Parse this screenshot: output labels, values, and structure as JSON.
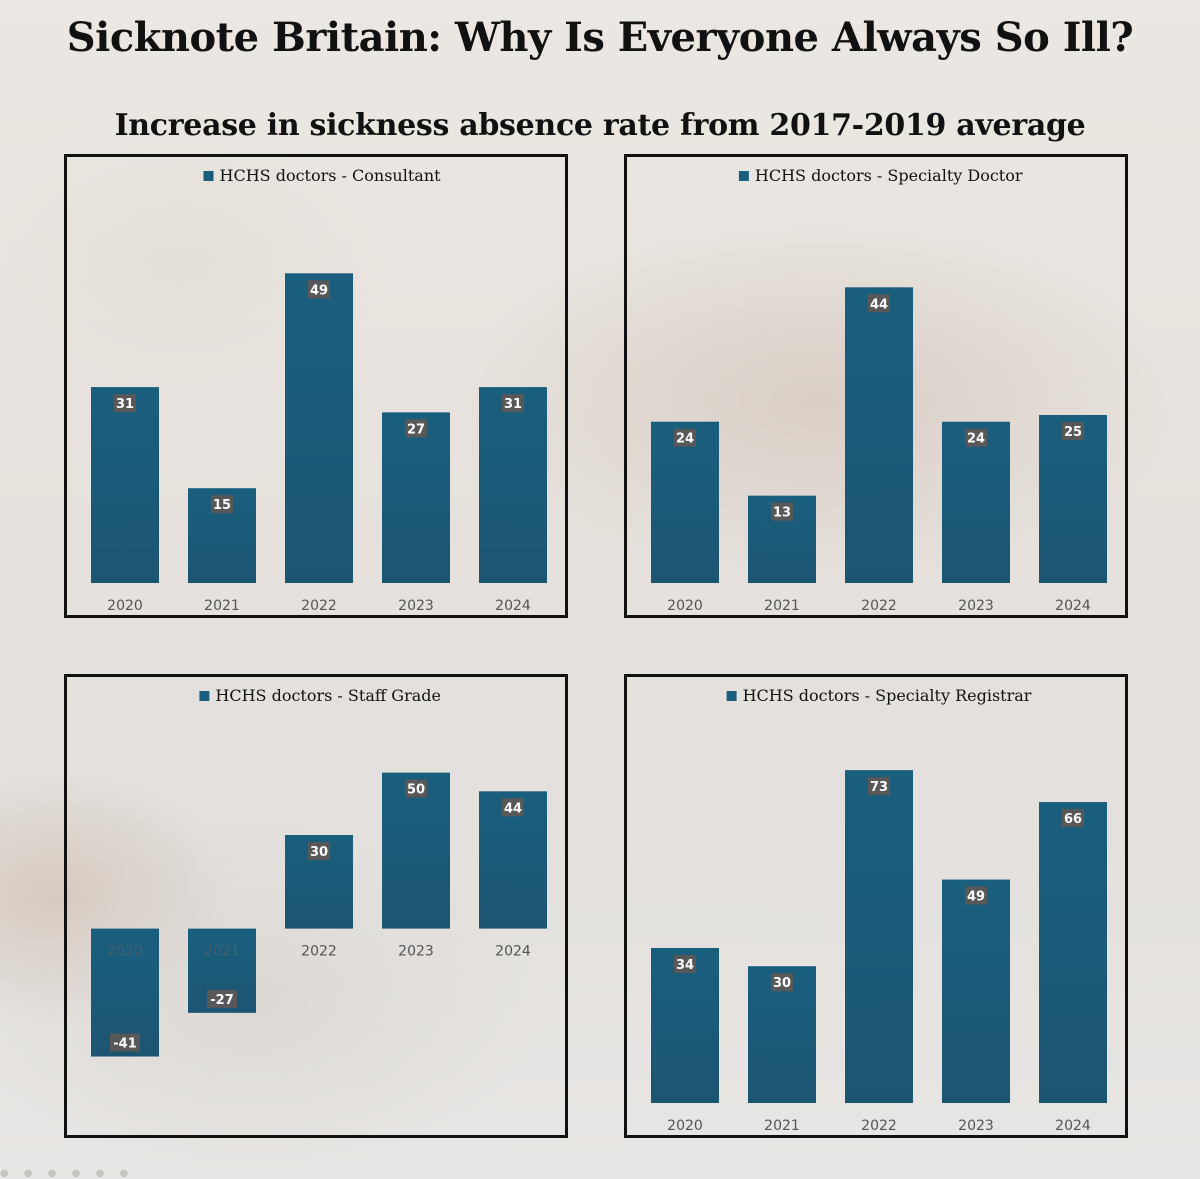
{
  "title": "Sicknote Britain: Why Is Everyone Always So Ill?",
  "subtitle": "Increase in sickness absence rate from 2017-2019 average",
  "colors": {
    "bar": "#1a5e7e",
    "label_bg": "#585858"
  },
  "chart_data": [
    {
      "type": "bar",
      "legend": "HCHS doctors - Consultant",
      "categories": [
        "2020",
        "2021",
        "2022",
        "2023",
        "2024"
      ],
      "series": [
        {
          "name": "HCHS doctors - Consultant",
          "values": [
            31,
            15,
            49,
            27,
            31
          ]
        }
      ],
      "ylim": [
        0,
        50
      ],
      "grid": false,
      "legend_position": "top"
    },
    {
      "type": "bar",
      "legend": "HCHS doctors - Specialty Doctor",
      "categories": [
        "2020",
        "2021",
        "2022",
        "2023",
        "2024"
      ],
      "series": [
        {
          "name": "HCHS doctors - Specialty Doctor",
          "values": [
            24,
            13,
            44,
            24,
            25
          ]
        }
      ],
      "ylim": [
        0,
        50
      ],
      "grid": false,
      "legend_position": "top"
    },
    {
      "type": "bar",
      "legend": "HCHS doctors - Staff Grade",
      "categories": [
        "2020",
        "2021",
        "2022",
        "2023",
        "2024"
      ],
      "series": [
        {
          "name": "HCHS doctors - Staff Grade",
          "values": [
            -41,
            -27,
            30,
            50,
            44
          ]
        }
      ],
      "ylim": [
        -45,
        55
      ],
      "grid": false,
      "legend_position": "top"
    },
    {
      "type": "bar",
      "legend": "HCHS doctors - Specialty Registrar",
      "categories": [
        "2020",
        "2021",
        "2022",
        "2023",
        "2024"
      ],
      "series": [
        {
          "name": "HCHS doctors - Specialty Registrar",
          "values": [
            34,
            30,
            73,
            49,
            66
          ]
        }
      ],
      "ylim": [
        0,
        75
      ],
      "grid": false,
      "legend_position": "top"
    }
  ]
}
